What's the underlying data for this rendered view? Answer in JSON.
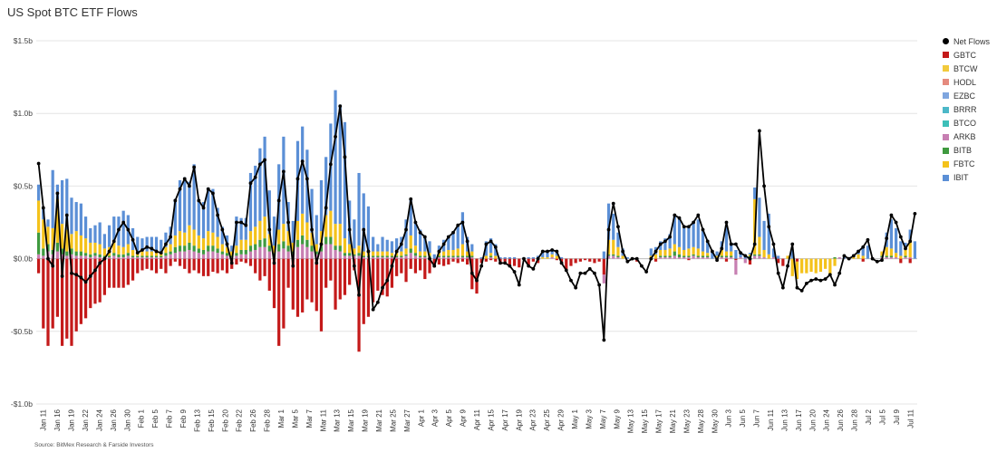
{
  "title": "US Spot BTC ETF Flows",
  "source": "Source: BitMex Research & Farside Investors",
  "chart_data": {
    "type": "bar",
    "stacked": true,
    "ylim": [
      -1.0,
      1.5
    ],
    "yticks": [
      {
        "value": 1.5,
        "label": "$1.5b"
      },
      {
        "value": 1.0,
        "label": "$1.0b"
      },
      {
        "value": 0.5,
        "label": "$0.5b"
      },
      {
        "value": 0.0,
        "label": "$0.0b"
      },
      {
        "value": -0.5,
        "label": "-$0.5b"
      },
      {
        "value": -1.0,
        "label": "-$1.0b"
      }
    ],
    "grid": true,
    "legend_position": "right",
    "x_tick_labels": [
      "Jan 11",
      "Jan 16",
      "Jan 19",
      "Jan 22",
      "Jan 24",
      "Jan 26",
      "Jan 30",
      "Feb 1",
      "Feb 5",
      "Feb 7",
      "Feb 9",
      "Feb 13",
      "Feb 15",
      "Feb 20",
      "Feb 22",
      "Feb 26",
      "Feb 28",
      "Mar 1",
      "Mar 5",
      "Mar 7",
      "Mar 11",
      "Mar 13",
      "Mar 15",
      "Mar 19",
      "Mar 21",
      "Mar 25",
      "Mar 27",
      "Apr 1",
      "Apr 3",
      "Apr 5",
      "Apr 9",
      "Apr 11",
      "Apr 15",
      "Apr 17",
      "Apr 19",
      "Apr 23",
      "Apr 25",
      "Apr 29",
      "May 1",
      "May 3",
      "May 7",
      "May 9",
      "May 13",
      "May 15",
      "May 17",
      "May 21",
      "May 23",
      "May 28",
      "May 30",
      "Jun 3",
      "Jun 5",
      "Jun 7",
      "Jun 11",
      "Jun 13",
      "Jun 17",
      "Jun 20",
      "Jun 24",
      "Jun 26",
      "Jun 28",
      "Jul 2",
      "Jul 5",
      "Jul 9",
      "Jul 11"
    ],
    "series": [
      {
        "name": "Net Flows",
        "type": "line",
        "color": "#000000",
        "values": [
          0.655,
          0.35,
          0.0,
          -0.05,
          0.45,
          -0.12,
          0.3,
          -0.1,
          -0.11,
          -0.13,
          -0.16,
          -0.12,
          -0.08,
          -0.03,
          0.0,
          0.05,
          0.12,
          0.2,
          0.25,
          0.2,
          0.13,
          0.04,
          0.06,
          0.08,
          0.07,
          0.05,
          0.04,
          0.1,
          0.15,
          0.4,
          0.48,
          0.55,
          0.5,
          0.63,
          0.4,
          0.35,
          0.48,
          0.45,
          0.3,
          0.2,
          0.1,
          -0.03,
          0.25,
          0.25,
          0.23,
          0.52,
          0.56,
          0.65,
          0.68,
          0.2,
          -0.03,
          0.4,
          0.6,
          0.25,
          -0.05,
          0.55,
          0.67,
          0.55,
          0.2,
          -0.03,
          0.1,
          0.35,
          0.65,
          0.84,
          1.05,
          0.7,
          0.2,
          -0.05,
          -0.25,
          0.2,
          0.05,
          -0.35,
          -0.3,
          -0.2,
          -0.15,
          -0.05,
          0.05,
          0.1,
          0.2,
          0.41,
          0.25,
          0.18,
          0.15,
          0.0,
          -0.05,
          0.05,
          0.1,
          0.15,
          0.18,
          0.23,
          0.25,
          0.12,
          -0.1,
          -0.15,
          -0.05,
          0.1,
          0.12,
          0.08,
          -0.03,
          -0.03,
          -0.05,
          -0.09,
          -0.18,
          0.0,
          -0.05,
          -0.07,
          0.0,
          0.05,
          0.05,
          0.06,
          0.05,
          -0.03,
          -0.08,
          -0.15,
          -0.2,
          -0.1,
          -0.1,
          -0.07,
          -0.1,
          -0.18,
          -0.56,
          0.2,
          0.38,
          0.22,
          0.05,
          -0.02,
          0.0,
          0.0,
          -0.05,
          -0.09,
          0.0,
          0.05,
          0.1,
          0.12,
          0.15,
          0.3,
          0.28,
          0.22,
          0.22,
          0.25,
          0.3,
          0.2,
          0.12,
          0.05,
          -0.01,
          0.07,
          0.25,
          0.1,
          0.1,
          0.04,
          0.02,
          0.0,
          0.1,
          0.88,
          0.5,
          0.22,
          0.1,
          -0.1,
          -0.2,
          -0.05,
          0.1,
          -0.2,
          -0.22,
          -0.17,
          -0.15,
          -0.14,
          -0.15,
          -0.14,
          -0.11,
          -0.18,
          -0.1,
          0.02,
          0.0,
          0.02,
          0.05,
          0.08,
          0.13,
          0.0,
          -0.02,
          -0.01,
          0.14,
          0.3,
          0.25,
          0.15,
          0.07,
          0.12,
          0.31
        ]
      },
      {
        "name": "GBTC",
        "color": "#c41a1a",
        "values": [
          -0.1,
          -0.48,
          -0.6,
          -0.48,
          -0.4,
          -0.6,
          -0.55,
          -0.6,
          -0.5,
          -0.45,
          -0.41,
          -0.34,
          -0.31,
          -0.3,
          -0.25,
          -0.2,
          -0.2,
          -0.2,
          -0.2,
          -0.18,
          -0.15,
          -0.1,
          -0.08,
          -0.07,
          -0.08,
          -0.1,
          -0.07,
          -0.1,
          -0.05,
          -0.02,
          -0.05,
          -0.07,
          -0.1,
          -0.08,
          -0.1,
          -0.12,
          -0.12,
          -0.09,
          -0.1,
          -0.08,
          -0.1,
          -0.07,
          -0.04,
          -0.02,
          -0.03,
          -0.05,
          -0.1,
          -0.15,
          -0.12,
          -0.22,
          -0.34,
          -0.6,
          -0.48,
          -0.2,
          -0.35,
          -0.4,
          -0.37,
          -0.28,
          -0.3,
          -0.36,
          -0.5,
          -0.2,
          -0.15,
          -0.35,
          -0.28,
          -0.25,
          -0.18,
          -0.08,
          -0.64,
          -0.45,
          -0.4,
          -0.3,
          -0.22,
          -0.25,
          -0.26,
          -0.2,
          -0.12,
          -0.1,
          -0.16,
          -0.07,
          -0.1,
          -0.08,
          -0.14,
          -0.1,
          -0.06,
          -0.04,
          -0.05,
          -0.04,
          -0.02,
          -0.03,
          -0.02,
          -0.04,
          -0.21,
          -0.24,
          -0.03,
          -0.02,
          -0.01,
          -0.02,
          -0.04,
          -0.02,
          -0.04,
          -0.05,
          -0.06,
          0,
          -0.04,
          -0.02,
          -0.03,
          0,
          0,
          0,
          -0.01,
          -0.04,
          -0.08,
          -0.05,
          -0.03,
          -0.02,
          -0.01,
          -0.02,
          -0.03,
          -0.02,
          -0.11,
          0,
          0,
          0,
          0,
          0,
          0,
          -0.02,
          0,
          0,
          0,
          -0.02,
          0,
          0,
          0,
          0,
          0,
          0,
          -0.01,
          0,
          0,
          0,
          0,
          0,
          0,
          0,
          -0.02,
          0,
          -0.01,
          0,
          0,
          -0.04,
          0,
          0,
          0,
          0,
          0,
          -0.03,
          -0.05,
          0,
          0,
          -0.02,
          0,
          0,
          0,
          0,
          0,
          0,
          0,
          0,
          0,
          0,
          0,
          0,
          0,
          -0.02,
          0,
          0,
          0,
          0,
          0,
          0,
          0,
          -0.03,
          0,
          -0.03,
          0,
          -0.02,
          -0.03,
          0
        ]
      },
      {
        "name": "BTCW",
        "color": "#f2ca3c",
        "values": []
      },
      {
        "name": "HODL",
        "color": "#e58a7e",
        "values": []
      },
      {
        "name": "EZBC",
        "color": "#7fa6df",
        "values": []
      },
      {
        "name": "BRRR",
        "color": "#4cb8c8",
        "values": []
      },
      {
        "name": "BTCO",
        "color": "#3dbfb8",
        "values": []
      },
      {
        "name": "ARKB",
        "color": "#c77fb2",
        "values": [
          0.03,
          0.02,
          0.05,
          0.03,
          0.05,
          0.03,
          0.02,
          0.03,
          0.02,
          0.02,
          0.02,
          0.01,
          0.02,
          0.01,
          0.01,
          0.01,
          0.02,
          0.01,
          0.01,
          0.02,
          0.01,
          0.01,
          0.01,
          0.01,
          0.01,
          0.01,
          0.01,
          0.02,
          0.03,
          0.04,
          0.05,
          0.05,
          0.06,
          0.05,
          0.04,
          0.03,
          0.05,
          0.05,
          0.04,
          0.03,
          0.02,
          0.01,
          0.02,
          0.03,
          0.03,
          0.05,
          0.06,
          0.08,
          0.08,
          0.05,
          0.02,
          0.05,
          0.07,
          0.05,
          0.03,
          0.08,
          0.1,
          0.08,
          0.05,
          0.03,
          0.05,
          0.1,
          0.1,
          0.06,
          0.05,
          0.02,
          0.02,
          0.02,
          0.02,
          0.01,
          0.01,
          0.01,
          0.01,
          0.01,
          0.01,
          0.01,
          0.01,
          0.01,
          0.02,
          0.04,
          0.02,
          0.01,
          0.01,
          0.01,
          0,
          0.01,
          0.01,
          0.01,
          0.01,
          0.01,
          0.01,
          0.01,
          0.01,
          0,
          0,
          0,
          0.01,
          0,
          0,
          0,
          0,
          0,
          0,
          0,
          0,
          0,
          0,
          0,
          0,
          0.01,
          0,
          0,
          0,
          0,
          0,
          0,
          0,
          0,
          0,
          0,
          -0.06,
          0.02,
          0.02,
          0.01,
          0,
          0,
          0,
          0,
          0,
          0,
          0,
          0,
          0.01,
          0.01,
          0.01,
          0.02,
          0.01,
          0.01,
          0.01,
          0.02,
          0.01,
          0.01,
          0.01,
          0,
          0,
          0.01,
          0.01,
          0.01,
          -0.1,
          0.01,
          -0.03,
          0.01,
          0.02,
          0.02,
          0.01,
          0,
          0.01,
          0,
          0,
          0,
          0,
          0,
          0,
          0,
          0,
          0,
          0,
          0,
          0,
          0,
          0.01,
          0,
          0,
          0,
          0,
          0,
          0,
          0.01,
          0,
          0.01,
          0.01,
          0.01,
          0.01,
          0,
          0.01,
          0.01
        ]
      },
      {
        "name": "BITB",
        "color": "#3f9a3f",
        "values": [
          0.15,
          0.05,
          0.05,
          0.03,
          0.06,
          0.04,
          0.03,
          0.04,
          0.03,
          0.03,
          0.02,
          0.02,
          0.02,
          0.02,
          0.01,
          0.01,
          0.02,
          0.02,
          0.02,
          0.02,
          0.01,
          0.01,
          0.01,
          0.01,
          0.01,
          0.01,
          0.01,
          0.02,
          0.02,
          0.04,
          0.04,
          0.04,
          0.05,
          0.04,
          0.03,
          0.03,
          0.04,
          0.04,
          0.03,
          0.02,
          0.02,
          0.01,
          0.02,
          0.03,
          0.03,
          0.04,
          0.04,
          0.05,
          0.06,
          0.04,
          0.02,
          0.05,
          0.05,
          0.04,
          0.02,
          0.05,
          0.06,
          0.05,
          0.04,
          0.02,
          0.04,
          0.05,
          0.05,
          0.03,
          0.04,
          0.02,
          0.02,
          0.01,
          0.02,
          0.01,
          0.01,
          0.01,
          0.01,
          0.01,
          0.01,
          0.01,
          0.01,
          0.01,
          0.01,
          0.03,
          0.02,
          0.01,
          0.01,
          0.01,
          0,
          0.01,
          0.01,
          0.01,
          0.01,
          0.01,
          0.01,
          0.01,
          0.01,
          0,
          0,
          0,
          0.01,
          0,
          0,
          0,
          0,
          0,
          0,
          0,
          0,
          0,
          0,
          0,
          0,
          0,
          0,
          0,
          0,
          0,
          0,
          0,
          0,
          0,
          0,
          0,
          0,
          0.01,
          0.01,
          0.01,
          0,
          0,
          0,
          0,
          0,
          0,
          0,
          0,
          0.01,
          0.01,
          0.01,
          0.03,
          0.02,
          0.01,
          0.01,
          0.01,
          0.01,
          0.01,
          0.01,
          0,
          0,
          0.01,
          0.01,
          0.01,
          0,
          0,
          0,
          0.01,
          0.01,
          0.01,
          0,
          0,
          0,
          0,
          0,
          0,
          0,
          0,
          0,
          0,
          0,
          0,
          0,
          0,
          0,
          0.01,
          0,
          0,
          0,
          0,
          0,
          0,
          0,
          0,
          0,
          0.01,
          0.01,
          0.01,
          0,
          0,
          0.01
        ]
      },
      {
        "name": "FBTC",
        "color": "#f4c21b",
        "values": [
          0.22,
          0.2,
          0.12,
          0.15,
          0.3,
          0.17,
          0.15,
          0.1,
          0.14,
          0.11,
          0.1,
          0.08,
          0.07,
          0.07,
          0.05,
          0.06,
          0.07,
          0.06,
          0.05,
          0.06,
          0.04,
          0.03,
          0.03,
          0.03,
          0.03,
          0.03,
          0.03,
          0.04,
          0.05,
          0.08,
          0.1,
          0.09,
          0.12,
          0.11,
          0.09,
          0.08,
          0.1,
          0.09,
          0.08,
          0.05,
          0.04,
          0.03,
          0.05,
          0.07,
          0.07,
          0.1,
          0.12,
          0.13,
          0.15,
          0.08,
          0.05,
          0.1,
          0.12,
          0.1,
          0.06,
          0.13,
          0.15,
          0.12,
          0.09,
          0.05,
          0.1,
          0.15,
          0.18,
          0.15,
          0.15,
          0.1,
          0.06,
          0.04,
          0.05,
          0.03,
          0.04,
          0.03,
          0.03,
          0.03,
          0.03,
          0.02,
          0.02,
          0.03,
          0.04,
          0.09,
          0.05,
          0.03,
          0.03,
          0.02,
          0,
          0.02,
          0.03,
          0.04,
          0.04,
          0.05,
          0.08,
          0.03,
          0.03,
          0,
          0,
          0.02,
          0.02,
          0.02,
          0,
          0,
          0,
          0,
          0,
          0,
          0,
          0,
          0,
          0.01,
          0.01,
          0.02,
          0.02,
          0,
          0,
          0,
          0,
          0,
          0,
          0,
          0,
          0,
          0,
          0.1,
          0.1,
          0.06,
          0.02,
          0,
          0,
          0,
          0,
          0,
          0.02,
          0.03,
          0.04,
          0.04,
          0.05,
          0.05,
          0.05,
          0.04,
          0.05,
          0.05,
          0.05,
          0.03,
          0.02,
          0,
          0.02,
          0.05,
          0.03,
          0.03,
          0,
          0,
          0,
          0.01,
          0.38,
          0.12,
          0.05,
          0.03,
          0,
          0,
          0,
          0.02,
          -0.12,
          -0.12,
          -0.1,
          -0.1,
          -0.09,
          -0.1,
          -0.09,
          -0.07,
          -0.12,
          -0.05,
          0,
          0,
          0,
          0.01,
          0.03,
          0.02,
          0,
          0,
          0,
          0.03,
          0.06,
          0.05,
          0.03,
          0.02,
          0.04,
          0.12
        ]
      },
      {
        "name": "IBIT",
        "color": "#5b8fd6",
        "values": [
          0.11,
          0.08,
          0.05,
          0.4,
          0.1,
          0.3,
          0.35,
          0.25,
          0.2,
          0.22,
          0.15,
          0.1,
          0.12,
          0.15,
          0.1,
          0.15,
          0.18,
          0.2,
          0.25,
          0.2,
          0.15,
          0.1,
          0.09,
          0.1,
          0.1,
          0.1,
          0.08,
          0.1,
          0.12,
          0.25,
          0.35,
          0.38,
          0.3,
          0.45,
          0.25,
          0.25,
          0.3,
          0.3,
          0.2,
          0.12,
          0.08,
          0.04,
          0.2,
          0.15,
          0.15,
          0.4,
          0.42,
          0.5,
          0.55,
          0.3,
          0.2,
          0.45,
          0.6,
          0.2,
          0.15,
          0.55,
          0.6,
          0.5,
          0.3,
          0.2,
          0.35,
          0.4,
          0.6,
          0.92,
          0.82,
          0.8,
          0.3,
          0.2,
          0.5,
          0.4,
          0.3,
          0.1,
          0.05,
          0.1,
          0.08,
          0.08,
          0.1,
          0.1,
          0.2,
          0.25,
          0.15,
          0.15,
          0.1,
          0.08,
          0.03,
          0.05,
          0.08,
          0.1,
          0.12,
          0.15,
          0.22,
          0.1,
          0.05,
          0,
          0.01,
          0.1,
          0.1,
          0.08,
          0.01,
          0.01,
          0.01,
          0.01,
          0,
          0.01,
          0.01,
          0.01,
          0.02,
          0.03,
          0.03,
          0.03,
          0.03,
          0.01,
          0,
          0,
          0,
          0,
          0,
          0,
          0,
          0,
          0.05,
          0.25,
          0.18,
          0.1,
          0.05,
          0.01,
          0,
          0,
          0,
          0,
          0.05,
          0.05,
          0.06,
          0.08,
          0.1,
          0.2,
          0.2,
          0.15,
          0.15,
          0.17,
          0.2,
          0.14,
          0.08,
          0.05,
          0.03,
          0.05,
          0.18,
          0.06,
          0.06,
          0.02,
          0.02,
          0.01,
          0.08,
          0.27,
          0.2,
          0.28,
          0.06,
          0.02,
          0,
          0,
          0.06,
          0,
          0,
          0,
          0,
          0,
          0,
          0,
          0,
          0,
          0,
          0.02,
          0.01,
          0.02,
          0.03,
          0.05,
          0.09,
          0,
          0,
          0,
          0.1,
          0.2,
          0.17,
          0.1,
          0.05,
          0.07,
          0.12
        ]
      }
    ]
  }
}
